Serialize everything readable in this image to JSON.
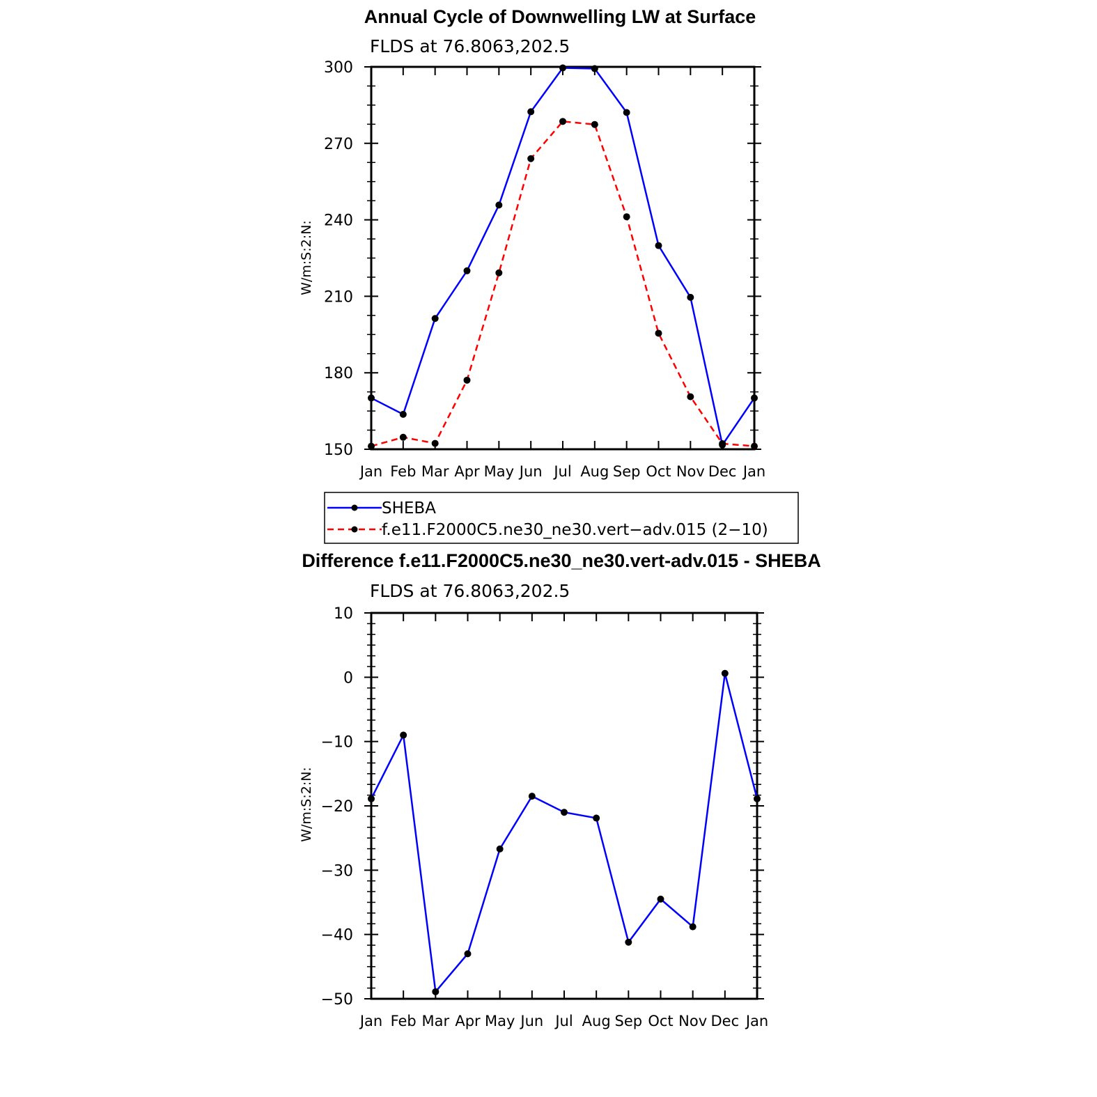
{
  "colors": {
    "model_line": "#ff0000",
    "obs_line": "#0000ff",
    "marker": "#000000",
    "axis": "#000000"
  },
  "chart_data": [
    {
      "type": "line",
      "title": "Annual Cycle of Downwelling LW at Surface",
      "subtitle": "FLDS at 76.8063,202.5",
      "ylabel": "W/m:S:2:N:",
      "xlabel": "",
      "ylim": [
        150,
        300
      ],
      "yticks": [
        "150",
        "180",
        "210",
        "240",
        "270",
        "300"
      ],
      "categories": [
        "Jan",
        "Feb",
        "Mar",
        "Apr",
        "May",
        "Jun",
        "Jul",
        "Aug",
        "Sep",
        "Oct",
        "Nov",
        "Dec",
        "Jan"
      ],
      "series": [
        {
          "name": "SHEBA",
          "style": "solid",
          "color": "#0000ff",
          "values": [
            170.1,
            163.7,
            201.3,
            220.0,
            245.8,
            282.4,
            299.6,
            299.3,
            282.1,
            229.9,
            209.6,
            151.7,
            170.1
          ]
        },
        {
          "name": "f.e11.F2000C5.ne30_ne30.vert−adv.015 (2−10)",
          "style": "dashed",
          "color": "#ff0000",
          "values": [
            151.2,
            154.7,
            152.3,
            177.1,
            219.2,
            264.0,
            278.6,
            277.4,
            241.2,
            195.5,
            170.6,
            152.2,
            151.2
          ]
        }
      ],
      "legend": "bottom"
    },
    {
      "type": "line",
      "title": "Difference f.e11.F2000C5.ne30_ne30.vert-adv.015 - SHEBA",
      "subtitle": "FLDS at 76.8063,202.5",
      "ylabel": "W/m:S:2:N:",
      "xlabel": "",
      "ylim": [
        -50,
        10
      ],
      "yticks": [
        "−50",
        "−40",
        "−30",
        "−20",
        "−10",
        "0",
        "10"
      ],
      "categories": [
        "Jan",
        "Feb",
        "Mar",
        "Apr",
        "May",
        "Jun",
        "Jul",
        "Aug",
        "Sep",
        "Oct",
        "Nov",
        "Dec",
        "Jan"
      ],
      "series": [
        {
          "style": "solid",
          "color": "#0000ff",
          "values": [
            -18.9,
            -9.0,
            -48.9,
            -43.0,
            -26.7,
            -18.5,
            -21.0,
            -21.9,
            -41.2,
            -34.5,
            -38.8,
            0.6,
            -18.9
          ]
        }
      ]
    }
  ]
}
